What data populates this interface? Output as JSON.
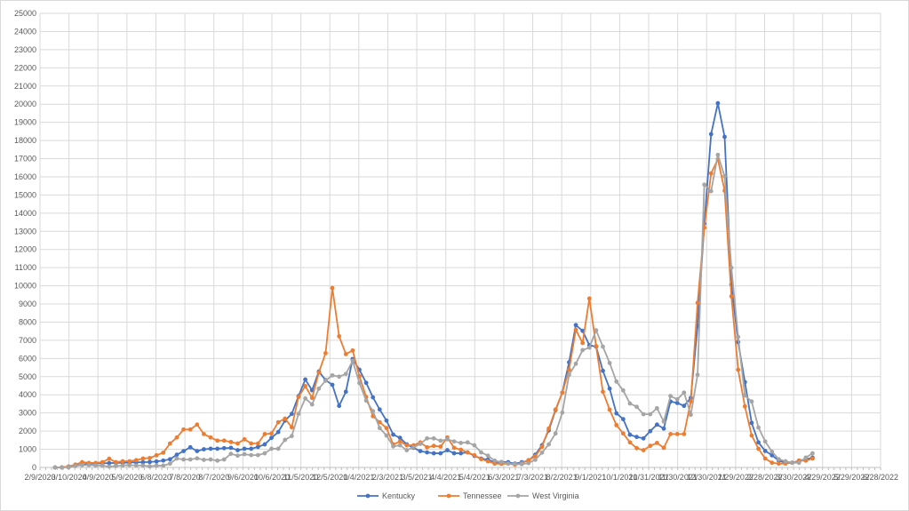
{
  "chart_data": {
    "type": "line",
    "title": "",
    "xlabel": "",
    "ylabel": "",
    "ylim": [
      0,
      25000
    ],
    "y_step": 1000,
    "grid": true,
    "legend_position": "bottom",
    "x_axis": {
      "start": "2020-02-09",
      "end": "2022-06-28",
      "tick_interval_days": 30,
      "tick_labels": [
        "2/9/2020",
        "3/10/2020",
        "4/9/2020",
        "5/9/2020",
        "6/8/2020",
        "7/8/2020",
        "8/7/2020",
        "9/6/2020",
        "10/6/2020",
        "11/5/2020",
        "12/5/2020",
        "1/4/2021",
        "2/3/2021",
        "3/5/2021",
        "4/4/2021",
        "5/4/2021",
        "6/3/2021",
        "7/3/2021",
        "8/2/2021",
        "9/1/2021",
        "10/1/2021",
        "10/31/2021",
        "11/30/2021",
        "12/30/2021",
        "1/29/2022",
        "2/28/2022",
        "3/30/2022",
        "4/29/2022",
        "5/29/2022",
        "6/28/2022"
      ]
    },
    "y_tick_labels": [
      "0",
      "1000",
      "2000",
      "3000",
      "4000",
      "5000",
      "6000",
      "7000",
      "8000",
      "9000",
      "10000",
      "11000",
      "12000",
      "13000",
      "14000",
      "15000",
      "16000",
      "17000",
      "18000",
      "19000",
      "20000",
      "21000",
      "22000",
      "23000",
      "24000",
      "25000"
    ],
    "x_start_offset_days": 15.6,
    "x_step_days": 7,
    "series": [
      {
        "name": "Kentucky",
        "color": "#4472C4",
        "values": [
          0,
          0,
          50,
          100,
          150,
          200,
          220,
          230,
          240,
          250,
          260,
          270,
          280,
          290,
          300,
          330,
          380,
          450,
          700,
          900,
          1110,
          900,
          1000,
          1030,
          1030,
          1060,
          1080,
          950,
          1030,
          1030,
          1130,
          1270,
          1630,
          1950,
          2580,
          2950,
          3930,
          4840,
          4250,
          5280,
          4810,
          4550,
          3390,
          4170,
          5970,
          5380,
          4660,
          3860,
          3190,
          2580,
          1810,
          1630,
          1270,
          1080,
          900,
          830,
          780,
          780,
          950,
          780,
          780,
          830,
          640,
          490,
          430,
          290,
          300,
          290,
          210,
          290,
          375,
          700,
          1220,
          2040,
          3150,
          4120,
          5790,
          7840,
          7520,
          6730,
          6650,
          5320,
          4340,
          2980,
          2660,
          1800,
          1680,
          1600,
          2000,
          2360,
          2140,
          3630,
          3550,
          3390,
          3830,
          7790,
          13420,
          18350,
          20050,
          18200,
          10070,
          6900,
          4700,
          2450,
          1380,
          910,
          670,
          375,
          260,
          260,
          375,
          455,
          540
        ]
      },
      {
        "name": "Tennessee",
        "color": "#ED7D31",
        "values": [
          0,
          10,
          50,
          160,
          290,
          250,
          250,
          290,
          480,
          290,
          340,
          340,
          400,
          490,
          520,
          670,
          815,
          1320,
          1650,
          2090,
          2090,
          2360,
          1840,
          1650,
          1480,
          1480,
          1400,
          1320,
          1550,
          1320,
          1320,
          1840,
          1870,
          2490,
          2690,
          2210,
          3880,
          4480,
          3830,
          5230,
          6290,
          9880,
          7220,
          6240,
          6440,
          5020,
          3880,
          2820,
          2490,
          2170,
          1270,
          1430,
          1220,
          1220,
          1380,
          1110,
          1190,
          1150,
          1650,
          1080,
          980,
          830,
          670,
          455,
          340,
          210,
          200,
          210,
          150,
          240,
          400,
          620,
          1140,
          2140,
          3190,
          4120,
          5380,
          7580,
          6850,
          9300,
          6680,
          4170,
          3180,
          2330,
          1870,
          1380,
          1060,
          950,
          1190,
          1350,
          1080,
          1840,
          1840,
          1840,
          3630,
          9060,
          13200,
          16190,
          16970,
          15240,
          9420,
          5380,
          3360,
          1760,
          1030,
          490,
          260,
          210,
          210,
          260,
          375,
          375,
          490
        ]
      },
      {
        "name": "West Virginia",
        "color": "#A5A5A5",
        "values": [
          0,
          0,
          0,
          80,
          130,
          130,
          110,
          100,
          50,
          80,
          110,
          130,
          110,
          110,
          60,
          100,
          100,
          210,
          490,
          440,
          440,
          500,
          420,
          440,
          375,
          440,
          750,
          650,
          730,
          680,
          680,
          780,
          1030,
          1030,
          1520,
          1730,
          2950,
          3800,
          3470,
          4340,
          4780,
          5070,
          5000,
          5150,
          5870,
          4650,
          3680,
          3100,
          2170,
          1760,
          1160,
          1220,
          950,
          1110,
          1300,
          1600,
          1600,
          1470,
          1550,
          1430,
          1350,
          1380,
          1220,
          830,
          650,
          375,
          290,
          210,
          180,
          180,
          240,
          425,
          815,
          1270,
          1870,
          3020,
          5100,
          5710,
          6460,
          6600,
          7550,
          6650,
          5750,
          4730,
          4240,
          3520,
          3340,
          2930,
          2930,
          3260,
          2530,
          3930,
          3750,
          4120,
          2900,
          5100,
          15570,
          15210,
          17210,
          16030,
          11000,
          7190,
          3960,
          3630,
          2200,
          1430,
          870,
          450,
          340,
          260,
          260,
          540,
          780
        ]
      }
    ]
  },
  "gridline_color": "#D9D9D9"
}
